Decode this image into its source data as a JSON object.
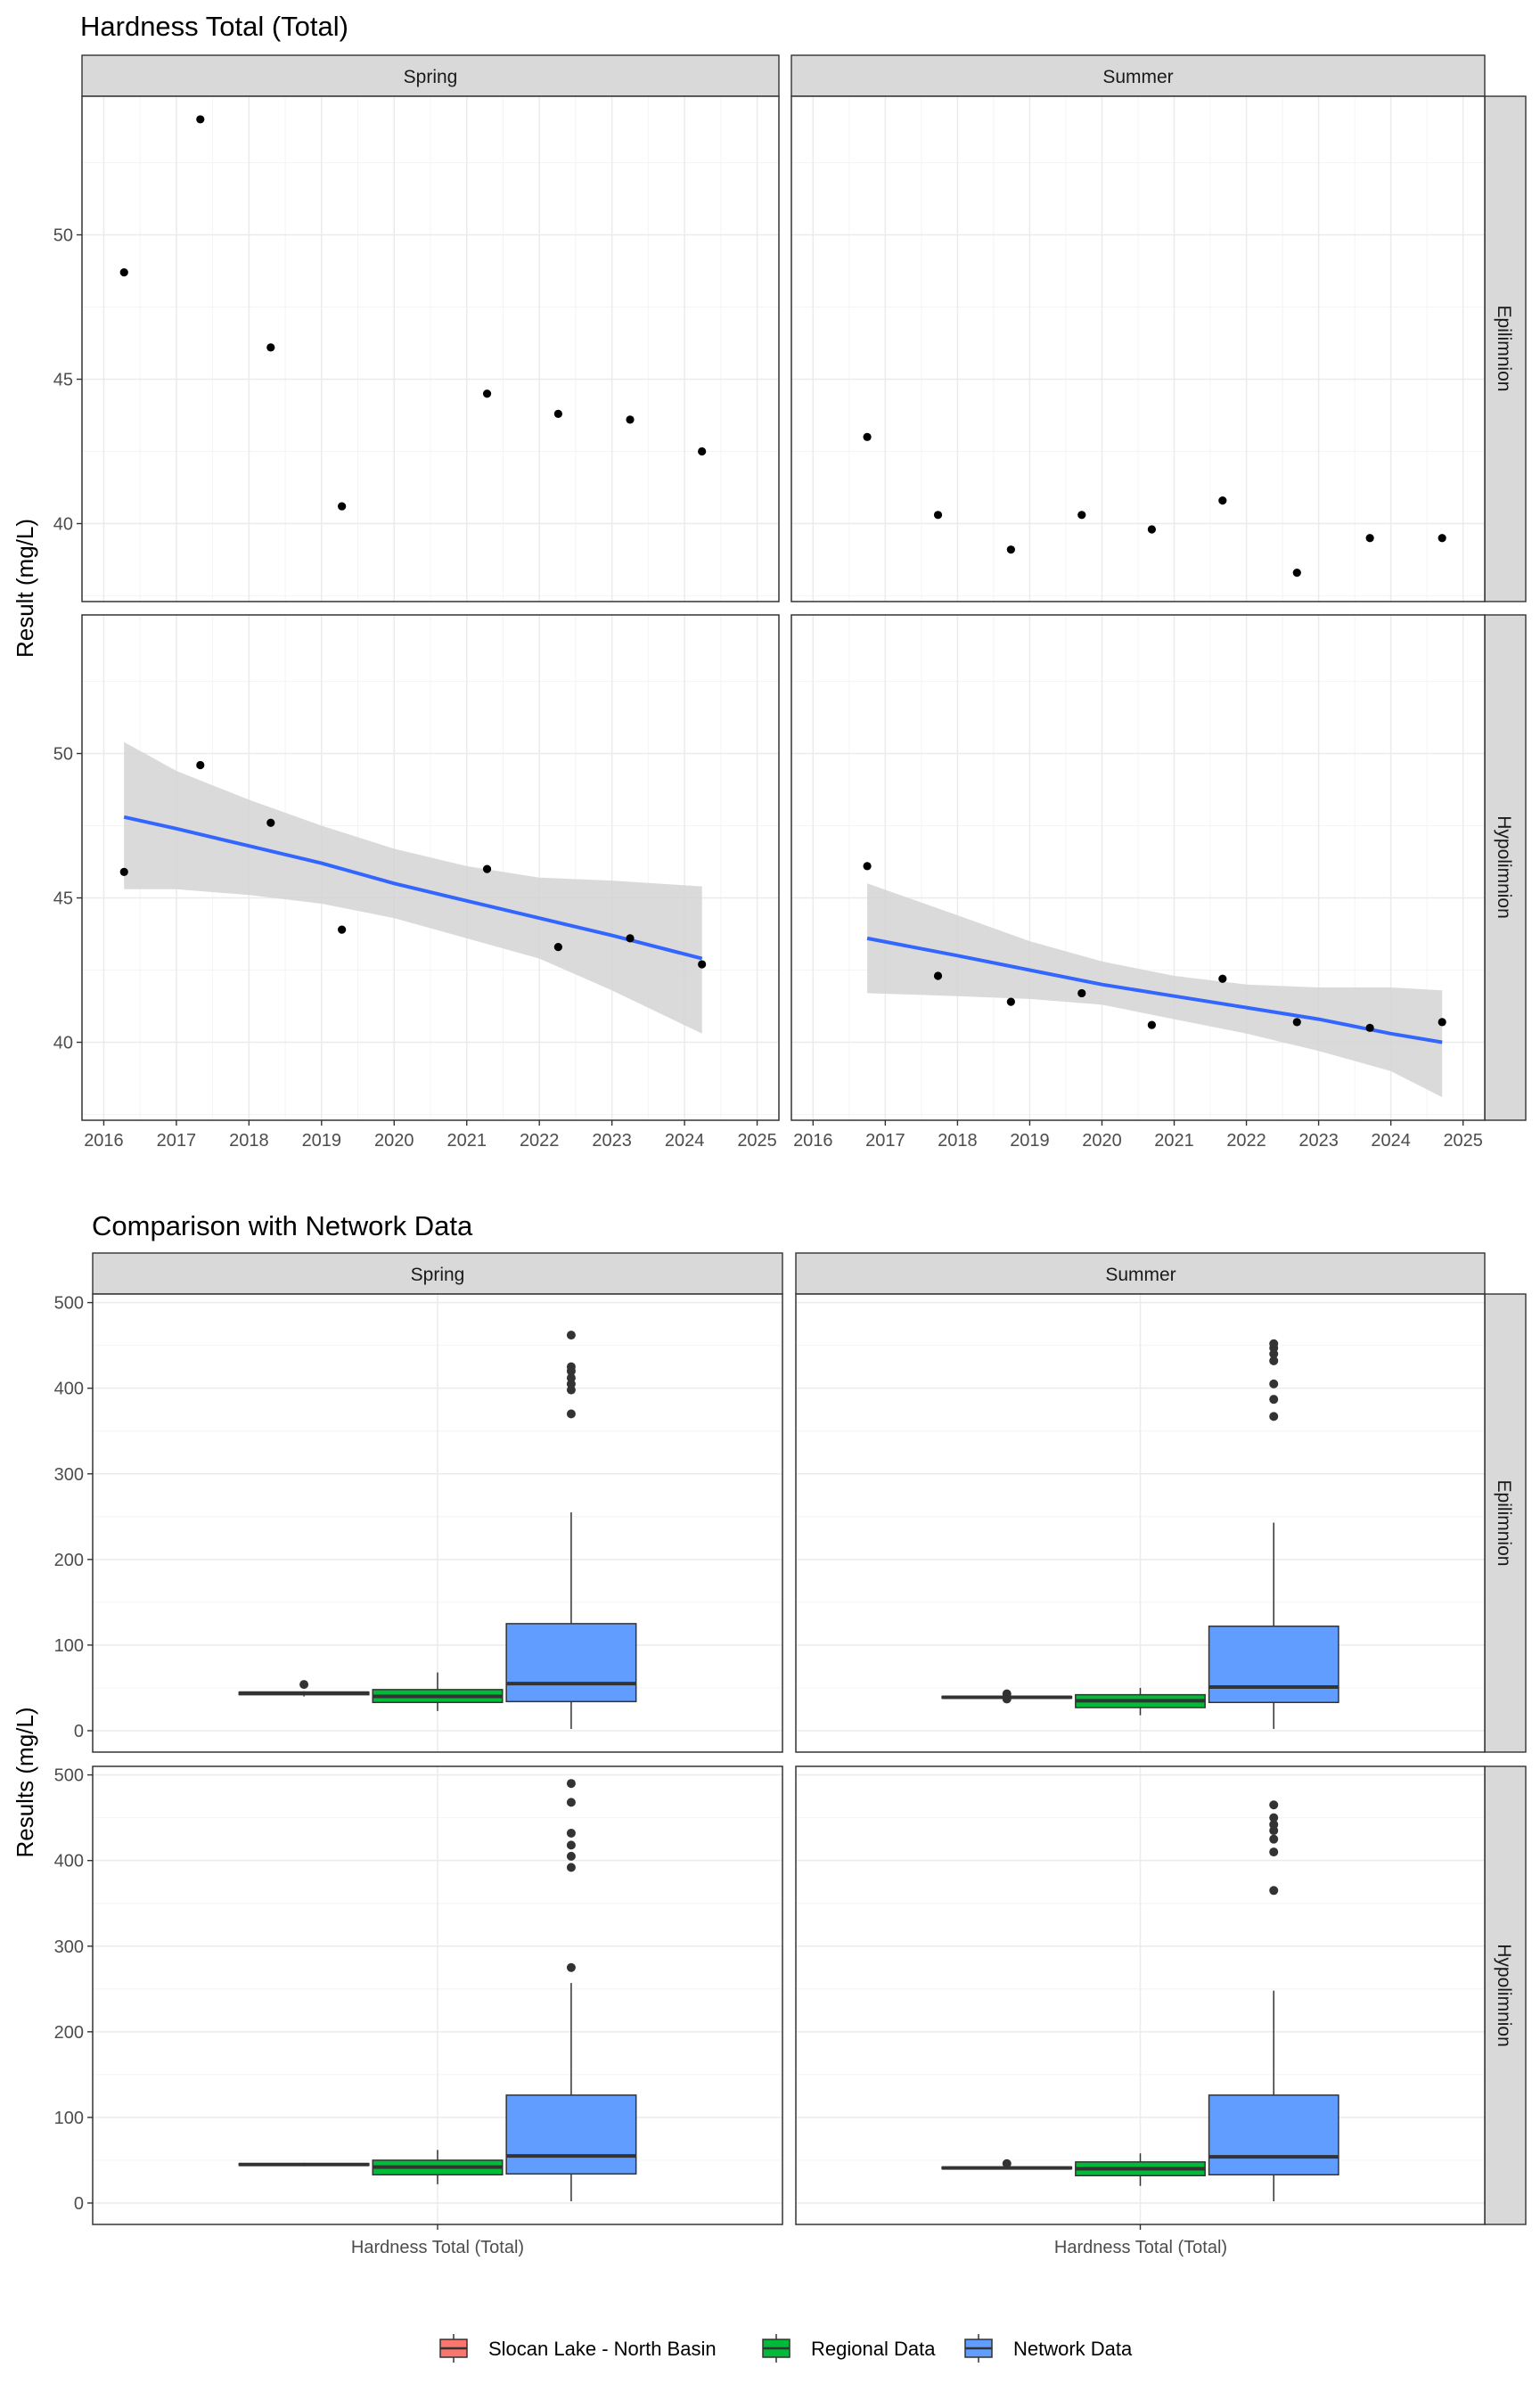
{
  "figure": {
    "title_top": "Hardness Total (Total)",
    "title_bottom": "Comparison with Network Data",
    "ylabel_top": "Result (mg/L)",
    "ylabel_bottom": "Results (mg/L)",
    "col_strips": [
      "Spring",
      "Summer"
    ],
    "row_strips": [
      "Epilimnion",
      "Hypolimnion"
    ],
    "xlabel_bottom_category": "Hardness Total (Total)"
  },
  "colors": {
    "points": "#000000",
    "trend_line": "#3366FF",
    "ribbon": "#d3d3d3",
    "strip_fill": "#d9d9d9",
    "grid_major": "#ebebeb",
    "slocan": "#F8766D",
    "regional": "#00BA38",
    "network": "#619CFF"
  },
  "legend": [
    {
      "label": "Slocan Lake - North Basin",
      "color": "#F8766D"
    },
    {
      "label": "Regional Data",
      "color": "#00BA38"
    },
    {
      "label": "Network Data",
      "color": "#619CFF"
    }
  ],
  "chart_data": [
    {
      "type": "scatter",
      "title": "Hardness Total (Total)",
      "ylabel": "Result (mg/L)",
      "x_ticks": [
        "2016",
        "2017",
        "2018",
        "2019",
        "2020",
        "2021",
        "2022",
        "2023",
        "2024",
        "2025"
      ],
      "xlim": [
        2015.7,
        2025.3
      ],
      "panels": [
        {
          "season": "Spring",
          "layer": "Epilimnion",
          "ylim": [
            37.3,
            54.8
          ],
          "y_ticks": [
            40,
            45,
            50
          ],
          "points": [
            [
              2016.28,
              48.7
            ],
            [
              2017.33,
              54.0
            ],
            [
              2018.3,
              46.1
            ],
            [
              2019.28,
              40.6
            ],
            [
              2021.28,
              44.5
            ],
            [
              2022.26,
              43.8
            ],
            [
              2023.25,
              43.6
            ],
            [
              2024.24,
              42.5
            ]
          ],
          "trend": null
        },
        {
          "season": "Summer",
          "layer": "Epilimnion",
          "ylim": [
            37.3,
            54.8
          ],
          "y_ticks": [
            40,
            45,
            50
          ],
          "points": [
            [
              2016.75,
              43.0
            ],
            [
              2017.73,
              40.3
            ],
            [
              2018.74,
              39.1
            ],
            [
              2019.72,
              40.3
            ],
            [
              2020.69,
              39.8
            ],
            [
              2021.67,
              40.8
            ],
            [
              2022.7,
              38.3
            ],
            [
              2023.71,
              39.5
            ],
            [
              2024.71,
              39.5
            ]
          ],
          "trend": null
        },
        {
          "season": "Spring",
          "layer": "Hypolimnion",
          "ylim": [
            37.3,
            54.8
          ],
          "y_ticks": [
            40,
            45,
            50
          ],
          "points": [
            [
              2016.28,
              45.9
            ],
            [
              2017.33,
              49.6
            ],
            [
              2018.3,
              47.6
            ],
            [
              2019.28,
              43.9
            ],
            [
              2021.28,
              46.0
            ],
            [
              2022.26,
              43.3
            ],
            [
              2023.25,
              43.6
            ],
            [
              2024.24,
              42.7
            ]
          ],
          "trend": {
            "x": [
              2016.28,
              2017.0,
              2018.0,
              2019.0,
              2020.0,
              2021.0,
              2022.0,
              2023.0,
              2024.24
            ],
            "fit": [
              47.8,
              47.4,
              46.8,
              46.2,
              45.5,
              44.9,
              44.3,
              43.7,
              42.9
            ],
            "lower": [
              45.3,
              45.3,
              45.1,
              44.8,
              44.3,
              43.6,
              42.9,
              41.8,
              40.3
            ],
            "upper": [
              50.4,
              49.4,
              48.4,
              47.5,
              46.7,
              46.1,
              45.7,
              45.6,
              45.4
            ]
          }
        },
        {
          "season": "Summer",
          "layer": "Hypolimnion",
          "ylim": [
            37.3,
            54.8
          ],
          "y_ticks": [
            40,
            45,
            50
          ],
          "points": [
            [
              2016.75,
              46.1
            ],
            [
              2017.73,
              42.3
            ],
            [
              2018.74,
              41.4
            ],
            [
              2019.72,
              41.7
            ],
            [
              2020.69,
              40.6
            ],
            [
              2021.67,
              42.2
            ],
            [
              2022.7,
              40.7
            ],
            [
              2023.71,
              40.5
            ],
            [
              2024.71,
              40.7
            ]
          ],
          "trend": {
            "x": [
              2016.75,
              2018.0,
              2019.0,
              2020.0,
              2021.0,
              2022.0,
              2023.0,
              2024.0,
              2024.71
            ],
            "fit": [
              43.6,
              43.0,
              42.5,
              42.0,
              41.6,
              41.2,
              40.8,
              40.3,
              40.0
            ],
            "lower": [
              41.7,
              41.6,
              41.5,
              41.3,
              40.8,
              40.3,
              39.7,
              39.0,
              38.1
            ],
            "upper": [
              45.5,
              44.4,
              43.5,
              42.8,
              42.3,
              42.0,
              41.9,
              41.9,
              41.8
            ]
          }
        }
      ]
    },
    {
      "type": "boxplot",
      "title": "Comparison with Network Data",
      "ylabel": "Results (mg/L)",
      "category": "Hardness Total (Total)",
      "groups": [
        "Slocan Lake - North Basin",
        "Regional Data",
        "Network Data"
      ],
      "ylim": [
        -25,
        510
      ],
      "y_ticks": [
        0,
        100,
        200,
        300,
        400,
        500
      ],
      "panels": [
        {
          "season": "Spring",
          "layer": "Epilimnion",
          "boxes": [
            {
              "group": "Slocan Lake - North Basin",
              "q1": 42,
              "median": 44,
              "q3": 45,
              "whisker_low": 40,
              "whisker_high": 46,
              "outliers": [
                54
              ]
            },
            {
              "group": "Regional Data",
              "q1": 33,
              "median": 40,
              "q3": 48,
              "whisker_low": 23,
              "whisker_high": 68,
              "outliers": []
            },
            {
              "group": "Network Data",
              "q1": 34,
              "median": 55,
              "q3": 125,
              "whisker_low": 2,
              "whisker_high": 255,
              "outliers": [
                370,
                398,
                405,
                412,
                420,
                425,
                462
              ]
            }
          ]
        },
        {
          "season": "Summer",
          "layer": "Epilimnion",
          "boxes": [
            {
              "group": "Slocan Lake - North Basin",
              "q1": 38,
              "median": 39,
              "q3": 40,
              "whisker_low": 37,
              "whisker_high": 41,
              "outliers": [
                37,
                43
              ]
            },
            {
              "group": "Regional Data",
              "q1": 27,
              "median": 35,
              "q3": 42,
              "whisker_low": 18,
              "whisker_high": 50,
              "outliers": []
            },
            {
              "group": "Network Data",
              "q1": 33,
              "median": 51,
              "q3": 122,
              "whisker_low": 2,
              "whisker_high": 243,
              "outliers": [
                367,
                387,
                405,
                432,
                440,
                447,
                452
              ]
            }
          ]
        },
        {
          "season": "Spring",
          "layer": "Hypolimnion",
          "boxes": [
            {
              "group": "Slocan Lake - North Basin",
              "q1": 44,
              "median": 45,
              "q3": 46,
              "whisker_low": 43,
              "whisker_high": 47,
              "outliers": []
            },
            {
              "group": "Regional Data",
              "q1": 33,
              "median": 42,
              "q3": 50,
              "whisker_low": 22,
              "whisker_high": 62,
              "outliers": []
            },
            {
              "group": "Network Data",
              "q1": 34,
              "median": 55,
              "q3": 126,
              "whisker_low": 2,
              "whisker_high": 257,
              "outliers": [
                275,
                392,
                405,
                418,
                432,
                468,
                490
              ]
            }
          ]
        },
        {
          "season": "Summer",
          "layer": "Hypolimnion",
          "boxes": [
            {
              "group": "Slocan Lake - North Basin",
              "q1": 40,
              "median": 41,
              "q3": 42,
              "whisker_low": 39,
              "whisker_high": 43,
              "outliers": [
                46
              ]
            },
            {
              "group": "Regional Data",
              "q1": 32,
              "median": 40,
              "q3": 48,
              "whisker_low": 20,
              "whisker_high": 58,
              "outliers": []
            },
            {
              "group": "Network Data",
              "q1": 33,
              "median": 54,
              "q3": 126,
              "whisker_low": 2,
              "whisker_high": 248,
              "outliers": [
                365,
                410,
                425,
                435,
                442,
                450,
                465
              ]
            }
          ]
        }
      ]
    }
  ]
}
